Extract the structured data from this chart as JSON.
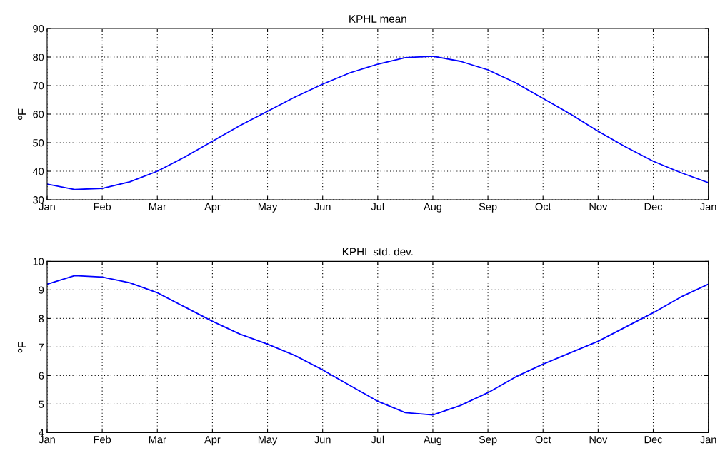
{
  "chart_data": [
    {
      "type": "line",
      "title": "KPHL mean",
      "ylabel": "ºF",
      "grid": true,
      "categories": [
        "Jan",
        null,
        "Feb",
        null,
        "Mar",
        null,
        "Apr",
        null,
        "May",
        null,
        "Jun",
        null,
        "Jul",
        null,
        "Aug",
        null,
        "Sep",
        null,
        "Oct",
        null,
        "Nov",
        null,
        "Dec",
        null,
        "Jan"
      ],
      "series": [
        {
          "color": "#0000ff",
          "values": [
            35.5,
            33.6,
            34,
            36.3,
            40,
            45,
            50.5,
            56,
            61,
            66,
            70.5,
            74.5,
            77.5,
            79.8,
            80.3,
            78.5,
            75.5,
            71,
            65.5,
            60,
            54,
            48.5,
            43.5,
            39.5,
            36
          ]
        }
      ],
      "ylim": [
        30,
        90
      ],
      "yticks": [
        30,
        40,
        50,
        60,
        70,
        80,
        90
      ]
    },
    {
      "type": "line",
      "title": "KPHL std. dev.",
      "ylabel": "ºF",
      "grid": true,
      "categories": [
        "Jan",
        null,
        "Feb",
        null,
        "Mar",
        null,
        "Apr",
        null,
        "May",
        null,
        "Jun",
        null,
        "Jul",
        null,
        "Aug",
        null,
        "Sep",
        null,
        "Oct",
        null,
        "Nov",
        null,
        "Dec",
        null,
        "Jan"
      ],
      "series": [
        {
          "color": "#0000ff",
          "values": [
            9.2,
            9.5,
            9.45,
            9.25,
            8.9,
            8.4,
            7.9,
            7.45,
            7.1,
            6.7,
            6.2,
            5.65,
            5.1,
            4.7,
            4.62,
            4.95,
            5.4,
            5.95,
            6.4,
            6.8,
            7.2,
            7.7,
            8.2,
            8.75,
            9.2
          ]
        }
      ],
      "ylim": [
        4,
        10
      ],
      "yticks": [
        4,
        5,
        6,
        7,
        8,
        9,
        10
      ]
    }
  ]
}
